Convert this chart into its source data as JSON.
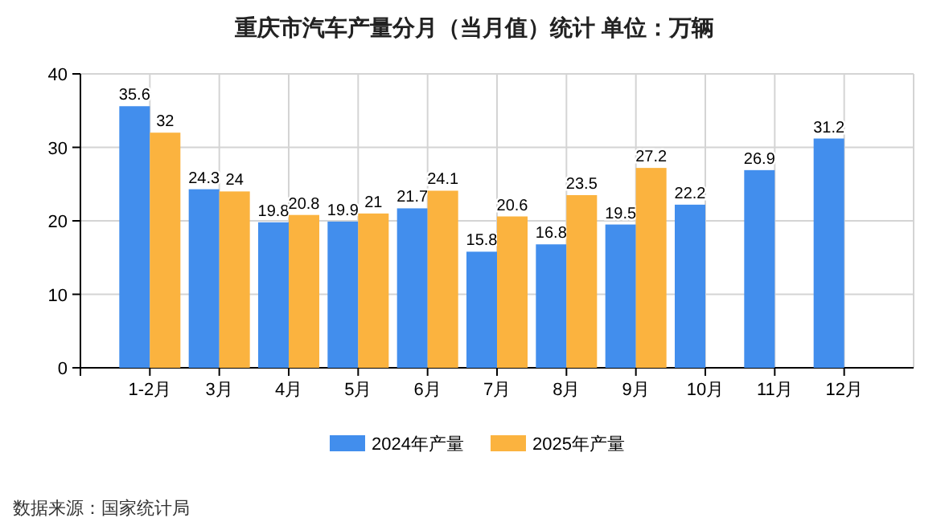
{
  "chart_data": {
    "type": "bar",
    "title": "重庆市汽车产量分月（当月值）统计  单位：万辆",
    "categories": [
      "1-2月",
      "3月",
      "4月",
      "5月",
      "6月",
      "7月",
      "8月",
      "9月",
      "10月",
      "11月",
      "12月"
    ],
    "series": [
      {
        "name": "2024年产量",
        "color": "#428eed",
        "values": [
          35.6,
          24.3,
          19.8,
          19.9,
          21.7,
          15.8,
          16.8,
          19.5,
          22.2,
          26.9,
          31.2
        ]
      },
      {
        "name": "2025年产量",
        "color": "#fbb33f",
        "values": [
          32,
          24,
          20.8,
          21,
          24.1,
          20.6,
          23.5,
          27.2,
          null,
          null,
          null
        ]
      }
    ],
    "ylim": [
      0,
      40
    ],
    "yticks": [
      0,
      10,
      20,
      30,
      40
    ],
    "grid": true,
    "legend": "bottom",
    "data_labels": true,
    "annotations": [
      "数据来源：国家统计局"
    ]
  }
}
